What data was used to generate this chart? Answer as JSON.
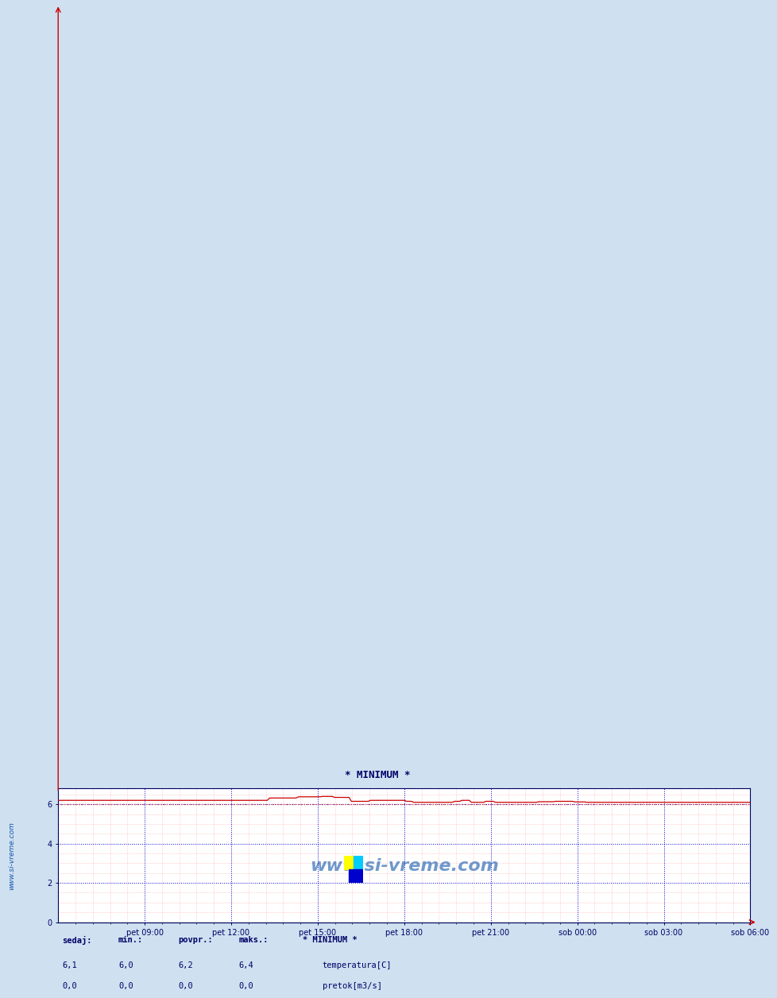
{
  "title": "* MINIMUM *",
  "bg_color": "#cfe0f0",
  "plot_bg_color": "#ffffff",
  "x_labels": [
    "pet 09:00",
    "pet 12:00",
    "pet 15:00",
    "pet 18:00",
    "pet 21:00",
    "sob 00:00",
    "sob 03:00",
    "sob 06:00"
  ],
  "ylim": [
    0,
    6.8
  ],
  "yticks": [
    0,
    2,
    4,
    6
  ],
  "temp_color": "#cc0000",
  "flow_color": "#00bb00",
  "min_line_color": "#dd3333",
  "min_line_value": 6.0,
  "grid_color_major": "#0000cc",
  "grid_color_minor": "#ffaaaa",
  "watermark": "www.si-vreme.com",
  "watermark_color": "#1155aa",
  "legend_title": "* MINIMUM *",
  "legend_temp_label": "temperatura[C]",
  "legend_flow_label": "pretok[m3/s]",
  "table_headers": [
    "sedaj:",
    "min.:",
    "povpr.:",
    "maks.:"
  ],
  "table_temp": [
    "6,1",
    "6,0",
    "6,2",
    "6,4"
  ],
  "table_flow": [
    "0,0",
    "0,0",
    "0,0",
    "0,0"
  ],
  "side_label": "www.si-vreme.com",
  "n_points": 289,
  "temp_min": 6.0,
  "temp_max": 6.4,
  "major_vert_count": 9,
  "minor_vert_count": 4
}
